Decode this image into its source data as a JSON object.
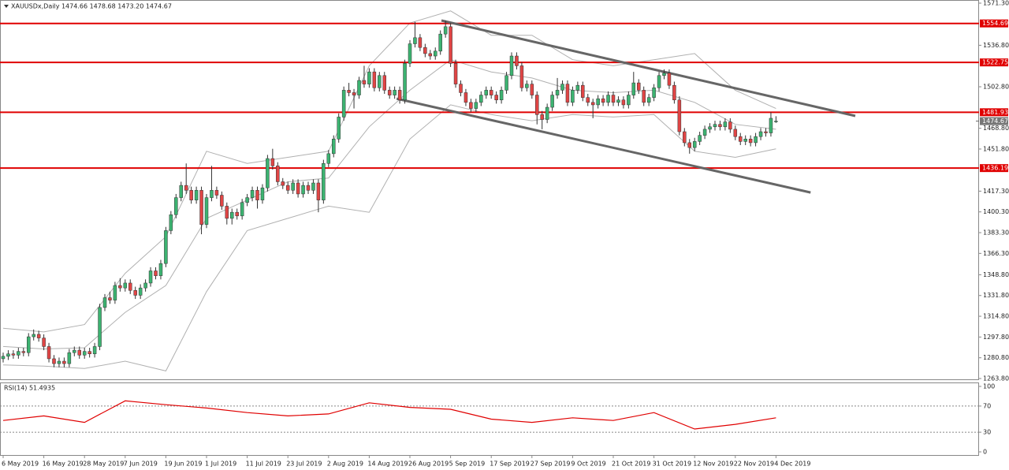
{
  "chart_data": {
    "type": "candlestick",
    "title": "XAUUSDx,Daily 1474.66 1478.68 1473.20 1474.67",
    "up_color": "#3cb371",
    "down_color": "#e04545",
    "wick_color": "#333333",
    "categories": [
      "6 May 2019",
      null,
      null,
      null,
      null,
      null,
      null,
      null,
      "16 May 2019",
      null,
      null,
      null,
      null,
      null,
      null,
      null,
      "28 May 2019",
      null,
      null,
      null,
      null,
      null,
      null,
      null,
      "7 Jun 2019",
      null,
      null,
      null,
      null,
      null,
      null,
      null,
      "19 Jun 2019",
      null,
      null,
      null,
      null,
      null,
      null,
      null,
      "1 Jul 2019",
      null,
      null,
      null,
      null,
      null,
      null,
      null,
      "11 Jul 2019",
      null,
      null,
      null,
      null,
      null,
      null,
      null,
      "23 Jul 2019",
      null,
      null,
      null,
      null,
      null,
      null,
      null,
      "2 Aug 2019",
      null,
      null,
      null,
      null,
      null,
      null,
      null,
      "14 Aug 2019",
      null,
      null,
      null,
      null,
      null,
      null,
      null,
      "26 Aug 2019",
      null,
      null,
      null,
      null,
      null,
      null,
      null,
      "5 Sep 2019",
      null,
      null,
      null,
      null,
      null,
      null,
      null,
      "17 Sep 2019",
      null,
      null,
      null,
      null,
      null,
      null,
      null,
      "27 Sep 2019",
      null,
      null,
      null,
      null,
      null,
      null,
      null,
      "9 Oct 2019",
      null,
      null,
      null,
      null,
      null,
      null,
      null,
      "21 Oct 2019",
      null,
      null,
      null,
      null,
      null,
      null,
      null,
      "31 Oct 2019",
      null,
      null,
      null,
      null,
      null,
      null,
      null,
      "12 Nov 2019",
      null,
      null,
      null,
      null,
      null,
      null,
      null,
      "22 Nov 2019",
      null,
      null,
      null,
      null,
      null,
      null,
      null,
      "4 Dec 2019"
    ],
    "ohlc": [
      [
        1280,
        1285,
        1277,
        1282
      ],
      [
        1282,
        1287,
        1279,
        1284
      ],
      [
        1284,
        1287,
        1280,
        1283
      ],
      [
        1283,
        1289,
        1280,
        1286
      ],
      [
        1286,
        1289,
        1282,
        1285
      ],
      [
        1285,
        1301,
        1282,
        1298
      ],
      [
        1298,
        1304,
        1295,
        1300
      ],
      [
        1300,
        1303,
        1294,
        1297
      ],
      [
        1297,
        1300,
        1287,
        1290
      ],
      [
        1290,
        1293,
        1277,
        1280
      ],
      [
        1280,
        1283,
        1273,
        1276
      ],
      [
        1276,
        1281,
        1273,
        1278
      ],
      [
        1278,
        1281,
        1273,
        1276
      ],
      [
        1276,
        1288,
        1273,
        1285
      ],
      [
        1285,
        1290,
        1282,
        1287
      ],
      [
        1287,
        1290,
        1280,
        1283
      ],
      [
        1283,
        1289,
        1280,
        1286
      ],
      [
        1286,
        1289,
        1281,
        1284
      ],
      [
        1284,
        1293,
        1281,
        1290
      ],
      [
        1290,
        1325,
        1287,
        1322
      ],
      [
        1322,
        1333,
        1319,
        1330
      ],
      [
        1330,
        1335,
        1325,
        1328
      ],
      [
        1328,
        1343,
        1325,
        1340
      ],
      [
        1340,
        1346,
        1335,
        1338
      ],
      [
        1338,
        1345,
        1335,
        1342
      ],
      [
        1342,
        1345,
        1333,
        1336
      ],
      [
        1336,
        1339,
        1329,
        1332
      ],
      [
        1332,
        1341,
        1329,
        1338
      ],
      [
        1338,
        1345,
        1335,
        1342
      ],
      [
        1342,
        1355,
        1339,
        1352
      ],
      [
        1352,
        1355,
        1345,
        1348
      ],
      [
        1348,
        1361,
        1345,
        1358
      ],
      [
        1358,
        1388,
        1355,
        1385
      ],
      [
        1385,
        1401,
        1382,
        1398
      ],
      [
        1398,
        1415,
        1395,
        1412
      ],
      [
        1412,
        1425,
        1409,
        1422
      ],
      [
        1422,
        1440,
        1415,
        1418
      ],
      [
        1418,
        1421,
        1407,
        1410
      ],
      [
        1410,
        1421,
        1407,
        1418
      ],
      [
        1418,
        1421,
        1382,
        1390
      ],
      [
        1390,
        1415,
        1387,
        1412
      ],
      [
        1412,
        1438,
        1409,
        1418
      ],
      [
        1418,
        1421,
        1411,
        1414
      ],
      [
        1414,
        1417,
        1402,
        1405
      ],
      [
        1405,
        1408,
        1390,
        1395
      ],
      [
        1395,
        1403,
        1390,
        1400
      ],
      [
        1400,
        1403,
        1394,
        1397
      ],
      [
        1397,
        1411,
        1394,
        1408
      ],
      [
        1408,
        1415,
        1405,
        1412
      ],
      [
        1412,
        1421,
        1409,
        1418
      ],
      [
        1418,
        1421,
        1403,
        1410
      ],
      [
        1410,
        1423,
        1407,
        1420
      ],
      [
        1420,
        1447,
        1417,
        1444
      ],
      [
        1444,
        1452,
        1435,
        1438
      ],
      [
        1438,
        1441,
        1422,
        1425
      ],
      [
        1425,
        1428,
        1419,
        1422
      ],
      [
        1422,
        1425,
        1415,
        1418
      ],
      [
        1418,
        1427,
        1415,
        1424
      ],
      [
        1424,
        1427,
        1412,
        1415
      ],
      [
        1415,
        1425,
        1412,
        1422
      ],
      [
        1422,
        1425,
        1415,
        1418
      ],
      [
        1418,
        1427,
        1415,
        1424
      ],
      [
        1424,
        1427,
        1400,
        1410
      ],
      [
        1410,
        1443,
        1407,
        1440
      ],
      [
        1440,
        1451,
        1437,
        1448
      ],
      [
        1448,
        1463,
        1445,
        1460
      ],
      [
        1460,
        1481,
        1457,
        1478
      ],
      [
        1478,
        1503,
        1475,
        1500
      ],
      [
        1500,
        1506,
        1495,
        1498
      ],
      [
        1498,
        1501,
        1485,
        1496
      ],
      [
        1496,
        1511,
        1493,
        1508
      ],
      [
        1508,
        1520,
        1502,
        1505
      ],
      [
        1505,
        1518,
        1502,
        1515
      ],
      [
        1515,
        1518,
        1499,
        1502
      ],
      [
        1502,
        1515,
        1499,
        1512
      ],
      [
        1512,
        1515,
        1497,
        1500
      ],
      [
        1500,
        1503,
        1493,
        1496
      ],
      [
        1496,
        1503,
        1493,
        1500
      ],
      [
        1500,
        1503,
        1489,
        1492
      ],
      [
        1492,
        1525,
        1489,
        1522
      ],
      [
        1522,
        1541,
        1519,
        1538
      ],
      [
        1538,
        1556,
        1535,
        1543
      ],
      [
        1543,
        1546,
        1532,
        1535
      ],
      [
        1535,
        1538,
        1527,
        1530
      ],
      [
        1530,
        1533,
        1525,
        1528
      ],
      [
        1528,
        1535,
        1525,
        1532
      ],
      [
        1532,
        1549,
        1529,
        1546
      ],
      [
        1546,
        1557,
        1543,
        1552
      ],
      [
        1552,
        1555,
        1519,
        1522
      ],
      [
        1522,
        1525,
        1502,
        1505
      ],
      [
        1505,
        1508,
        1495,
        1498
      ],
      [
        1498,
        1501,
        1487,
        1490
      ],
      [
        1490,
        1493,
        1482,
        1485
      ],
      [
        1485,
        1493,
        1482,
        1490
      ],
      [
        1490,
        1499,
        1487,
        1496
      ],
      [
        1496,
        1503,
        1493,
        1500
      ],
      [
        1500,
        1503,
        1493,
        1496
      ],
      [
        1496,
        1499,
        1489,
        1492
      ],
      [
        1492,
        1503,
        1489,
        1500
      ],
      [
        1500,
        1515,
        1497,
        1512
      ],
      [
        1512,
        1531,
        1509,
        1528
      ],
      [
        1528,
        1531,
        1517,
        1520
      ],
      [
        1520,
        1523,
        1499,
        1502
      ],
      [
        1502,
        1508,
        1499,
        1505
      ],
      [
        1505,
        1508,
        1493,
        1496
      ],
      [
        1496,
        1499,
        1472,
        1480
      ],
      [
        1480,
        1483,
        1468,
        1476
      ],
      [
        1476,
        1489,
        1473,
        1486
      ],
      [
        1486,
        1499,
        1483,
        1496
      ],
      [
        1496,
        1510,
        1493,
        1500
      ],
      [
        1500,
        1508,
        1497,
        1505
      ],
      [
        1505,
        1508,
        1487,
        1490
      ],
      [
        1490,
        1503,
        1487,
        1500
      ],
      [
        1500,
        1507,
        1497,
        1504
      ],
      [
        1504,
        1507,
        1491,
        1494
      ],
      [
        1494,
        1497,
        1487,
        1490
      ],
      [
        1490,
        1493,
        1477,
        1488
      ],
      [
        1488,
        1496,
        1485,
        1493
      ],
      [
        1493,
        1496,
        1487,
        1490
      ],
      [
        1490,
        1499,
        1487,
        1496
      ],
      [
        1496,
        1499,
        1487,
        1490
      ],
      [
        1490,
        1495,
        1487,
        1492
      ],
      [
        1492,
        1495,
        1485,
        1488
      ],
      [
        1488,
        1499,
        1485,
        1496
      ],
      [
        1496,
        1515,
        1493,
        1506
      ],
      [
        1506,
        1509,
        1497,
        1500
      ],
      [
        1500,
        1503,
        1487,
        1490
      ],
      [
        1490,
        1497,
        1487,
        1494
      ],
      [
        1494,
        1505,
        1491,
        1502
      ],
      [
        1502,
        1515,
        1499,
        1512
      ],
      [
        1512,
        1517,
        1509,
        1514
      ],
      [
        1514,
        1517,
        1501,
        1504
      ],
      [
        1504,
        1507,
        1489,
        1492
      ],
      [
        1492,
        1495,
        1463,
        1466
      ],
      [
        1466,
        1469,
        1454,
        1457
      ],
      [
        1457,
        1460,
        1448,
        1453
      ],
      [
        1453,
        1461,
        1450,
        1458
      ],
      [
        1458,
        1466,
        1455,
        1463
      ],
      [
        1463,
        1471,
        1460,
        1468
      ],
      [
        1468,
        1473,
        1465,
        1470
      ],
      [
        1470,
        1475,
        1467,
        1472
      ],
      [
        1472,
        1475,
        1467,
        1470
      ],
      [
        1470,
        1477,
        1467,
        1474
      ],
      [
        1474,
        1477,
        1465,
        1468
      ],
      [
        1468,
        1471,
        1459,
        1462
      ],
      [
        1462,
        1465,
        1455,
        1458
      ],
      [
        1458,
        1463,
        1455,
        1460
      ],
      [
        1460,
        1463,
        1454,
        1457
      ],
      [
        1457,
        1465,
        1454,
        1462
      ],
      [
        1462,
        1469,
        1459,
        1466
      ],
      [
        1466,
        1469,
        1462,
        1465
      ],
      [
        1465,
        1482,
        1462,
        1477
      ],
      [
        1474.66,
        1478.68,
        1473.2,
        1474.67
      ]
    ],
    "ylim": [
      1263.8,
      1571.3
    ],
    "yticks": [
      {
        "value": 1571.3,
        "label": "1571.30"
      },
      {
        "value": 1536.8,
        "label": "1536.80"
      },
      {
        "value": 1502.8,
        "label": "1502.80"
      },
      {
        "value": 1468.8,
        "label": "1468.80"
      },
      {
        "value": 1451.8,
        "label": "1451.80"
      },
      {
        "value": 1417.3,
        "label": "1417.30"
      },
      {
        "value": 1400.3,
        "label": "1400.30"
      },
      {
        "value": 1383.3,
        "label": "1383.30"
      },
      {
        "value": 1366.3,
        "label": "1366.30"
      },
      {
        "value": 1348.8,
        "label": "1348.80"
      },
      {
        "value": 1331.8,
        "label": "1331.80"
      },
      {
        "value": 1314.8,
        "label": "1314.80"
      },
      {
        "value": 1297.8,
        "label": "1297.80"
      },
      {
        "value": 1280.8,
        "label": "1280.80"
      },
      {
        "value": 1263.8,
        "label": "1263.80"
      }
    ],
    "levels": [
      1554.69,
      1522.75,
      1481.93,
      1436.19
    ],
    "level_color": "#e00000",
    "current_price": 1474.67,
    "bands": {
      "color": "#b0b0b0",
      "x": [
        0,
        8,
        16,
        24,
        32,
        40,
        48,
        56,
        64,
        72,
        80,
        88,
        96,
        104,
        112,
        120,
        128,
        136,
        144,
        152
      ],
      "upper": [
        1305,
        1302,
        1308,
        1350,
        1380,
        1450,
        1440,
        1445,
        1450,
        1520,
        1555,
        1565,
        1545,
        1545,
        1525,
        1520,
        1525,
        1530,
        1500,
        1485
      ],
      "middle": [
        1290,
        1288,
        1289,
        1318,
        1340,
        1395,
        1410,
        1425,
        1428,
        1470,
        1500,
        1525,
        1515,
        1510,
        1500,
        1498,
        1500,
        1490,
        1472,
        1468
      ],
      "lower": [
        1275,
        1274,
        1272,
        1278,
        1270,
        1335,
        1385,
        1395,
        1405,
        1400,
        1460,
        1488,
        1480,
        1475,
        1480,
        1478,
        1480,
        1450,
        1445,
        1452
      ]
    },
    "trendlines": [
      {
        "x": [
          86.2,
          167.6
        ],
        "values": [
          1557.1,
          1478.9
        ]
      },
      {
        "x": [
          77.4,
          158.8
        ],
        "values": [
          1493.1,
          1416.2
        ]
      }
    ],
    "trendline_color": "#666666",
    "rsi": {
      "title": "RSI(14) 51.4935",
      "color": "#e00000",
      "ylim": [
        0,
        100
      ],
      "yticks": [
        100,
        70,
        30,
        0
      ],
      "levels": [
        70,
        30
      ],
      "x": [
        0,
        8,
        16,
        24,
        32,
        40,
        48,
        56,
        64,
        72,
        80,
        88,
        96,
        104,
        112,
        120,
        128,
        136,
        144,
        152
      ],
      "values": [
        48,
        55,
        45,
        78,
        72,
        67,
        60,
        55,
        58,
        75,
        68,
        65,
        50,
        45,
        52,
        48,
        60,
        35,
        42,
        52
      ]
    }
  }
}
